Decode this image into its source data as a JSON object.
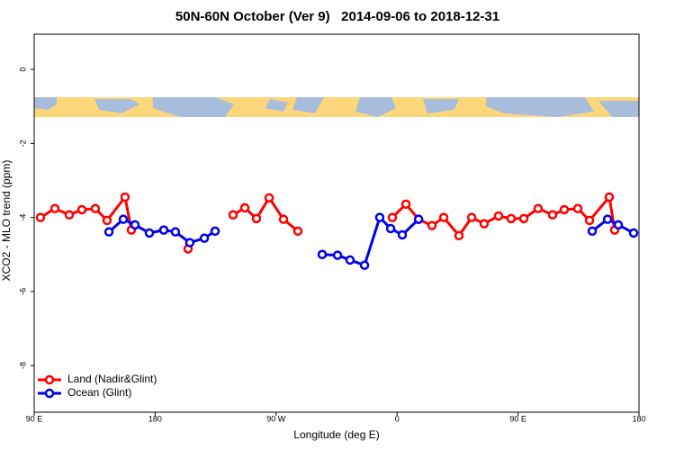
{
  "chart_data": {
    "type": "line",
    "title": "50N-60N October (Ver 9)   2014-09-06 to 2018-12-31",
    "x_label": "Longitude (deg E)",
    "y_label": "XCO2 - MLO trend (ppm)",
    "xlim": [
      90,
      540
    ],
    "xticks": [
      {
        "value": 90,
        "label": "90 E"
      },
      180,
      {
        "value": 270,
        "label": "90 W"
      },
      {
        "value": 360,
        "label": "0"
      },
      {
        "value": 450,
        "label": "90 E"
      },
      {
        "value": 540,
        "label": "180"
      }
    ],
    "ylim": [
      -9.26,
      0.95
    ],
    "yticks": [
      0,
      -2,
      -4,
      -6,
      -8
    ],
    "legend": "bottomleft",
    "series": [
      {
        "name": "Land (Nadir&Glint)",
        "color": "#ff0000",
        "x": [
          94.7,
          105.4,
          116.1,
          125.5,
          135.5,
          144.2,
          157.6,
          162.3,
          180,
          204.5,
          220,
          238,
          246.7,
          255.4,
          264.8,
          275.5,
          286.2,
          320,
          356.5,
          366.6,
          376,
          386,
          394.7,
          406.1,
          415.5,
          424.8,
          435.5,
          444.9,
          454.3,
          465,
          475.7,
          484.4,
          494.5,
          503.2,
          517.9,
          521.9
        ],
        "values": [
          -4.0,
          -3.76,
          -3.93,
          -3.79,
          -3.76,
          -4.08,
          -3.45,
          -4.34,
          null,
          -4.85,
          null,
          -3.93,
          -3.74,
          -4.03,
          -3.47,
          -4.05,
          -4.37,
          null,
          -4.0,
          -3.64,
          -4.05,
          -4.22,
          -4.0,
          -4.49,
          -4.0,
          -4.17,
          -3.96,
          -4.03,
          -4.03,
          -3.76,
          -3.93,
          -3.79,
          -3.76,
          -4.08,
          -3.45,
          -4.34
        ]
      },
      {
        "name": "Ocean (Glint)",
        "color": "#0000ee",
        "x": [
          145.6,
          156.3,
          165.0,
          175.7,
          186.4,
          195.1,
          205.8,
          216.6,
          224.6,
          260,
          304.3,
          315.7,
          325.0,
          335.8,
          347.1,
          355.2,
          363.9,
          376.0,
          440,
          505.2,
          516.6,
          524.6,
          536.0
        ],
        "values": [
          -4.39,
          -4.05,
          -4.2,
          -4.42,
          -4.34,
          -4.39,
          -4.68,
          -4.56,
          -4.37,
          null,
          -5.0,
          -5.02,
          -5.15,
          -5.29,
          -4.0,
          -4.3,
          -4.47,
          -4.05,
          null,
          -4.37,
          -4.05,
          -4.2,
          -4.42
        ]
      }
    ]
  }
}
